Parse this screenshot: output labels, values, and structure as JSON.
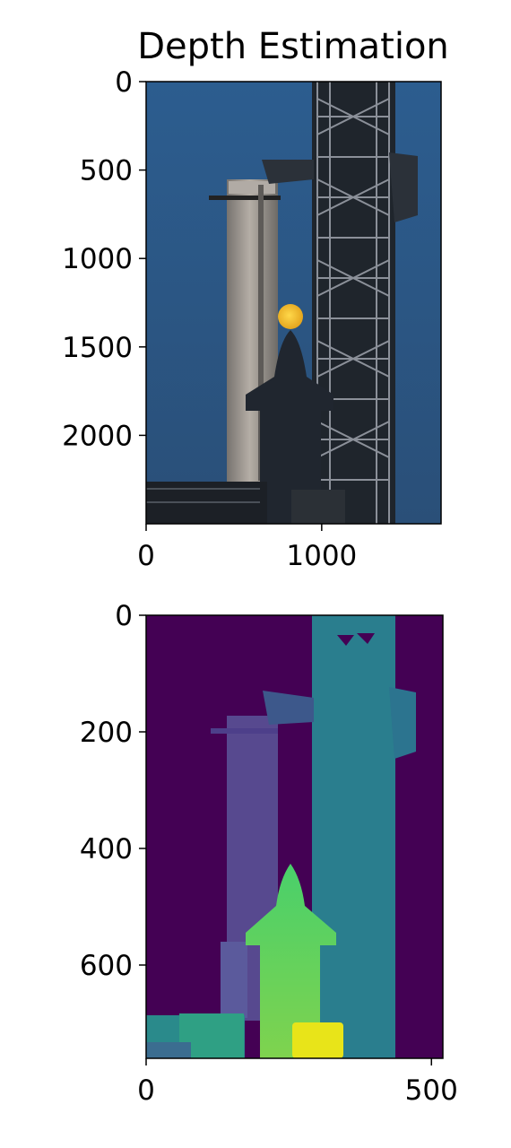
{
  "title": "Depth Estimation",
  "chart_data": [
    {
      "type": "image",
      "panel": "rgb-photo",
      "title": "Depth Estimation",
      "xlim": [
        0,
        1680
      ],
      "ylim": [
        2500,
        0
      ],
      "x_ticks": [
        0,
        1000
      ],
      "y_ticks": [
        0,
        500,
        1000,
        1500,
        2000
      ],
      "colors": {
        "sky": "#2f5f8e",
        "tower": "#9a9590",
        "ship": "#1f2833",
        "moon": "#f0c02a",
        "lattice": "#20252b"
      }
    },
    {
      "type": "heatmap",
      "panel": "depth-map",
      "colormap": "viridis",
      "xlim": [
        0,
        520
      ],
      "ylim": [
        760,
        0
      ],
      "x_ticks": [
        0,
        500
      ],
      "y_ticks": [
        0,
        200,
        400,
        600
      ],
      "colors": {
        "background": "#440154",
        "tower": "#26818e",
        "booster": "#5b4d94",
        "ship": "#4ac16d",
        "near": "#e6e419"
      }
    }
  ]
}
